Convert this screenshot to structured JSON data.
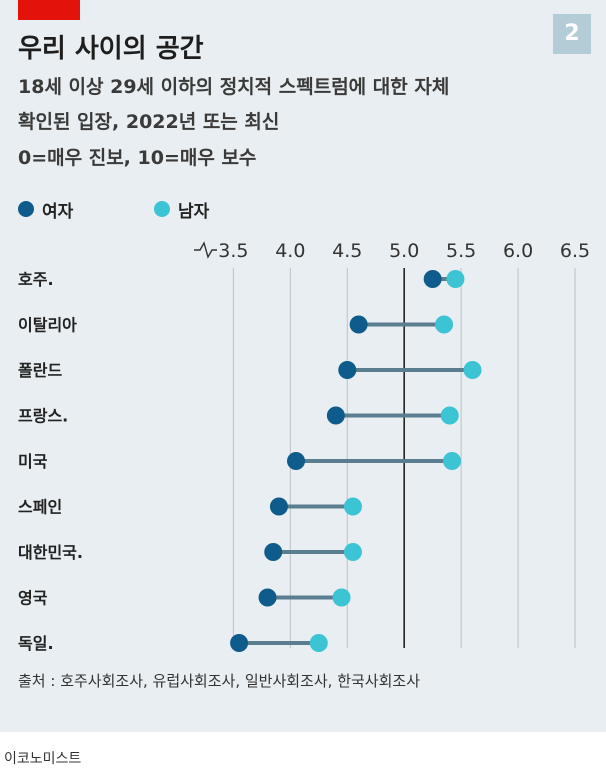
{
  "badge": "2",
  "title": "우리 사이의 공간",
  "subtitle_lines": [
    "18세 이상 29세 이하의 정치적 스펙트럼에 대한 자체",
    "확인된 입장, 2022년 또는 최신",
    "0=매우 진보, 10=매우 보수"
  ],
  "colors": {
    "women": "#0f5c8c",
    "men": "#3cc3d4",
    "connector": "#5a7e8f",
    "accent_red": "#e3120b",
    "badge_bg": "#b4ccd6"
  },
  "chart_data": {
    "type": "scatter",
    "subtype": "dumbbell",
    "legend": {
      "placement": "top-left"
    },
    "xlim": [
      3.4,
      6.5
    ],
    "x_ticks": [
      "3.5",
      "4.0",
      "4.5",
      "5.0",
      "5.5",
      "6.0",
      "6.5"
    ],
    "axis_break": true,
    "reference_line": 5.0,
    "grid": true,
    "categories": [
      "호주.",
      "이탈리아",
      "폴란드",
      "프랑스.",
      "미국",
      "스페인",
      "대한민국.",
      "영국",
      "독일."
    ],
    "series": [
      {
        "name": "여자",
        "color": "#0f5c8c",
        "values": [
          5.25,
          4.6,
          4.5,
          4.4,
          4.05,
          3.9,
          3.85,
          3.8,
          3.55
        ]
      },
      {
        "name": "남자",
        "color": "#3cc3d4",
        "values": [
          5.45,
          5.35,
          5.6,
          5.4,
          5.42,
          4.55,
          4.55,
          4.45,
          4.25
        ]
      }
    ]
  },
  "source": "출처 : 호주사회조사, 유럽사회조사, 일반사회조사, 한국사회조사",
  "brand": "이코노미스트"
}
